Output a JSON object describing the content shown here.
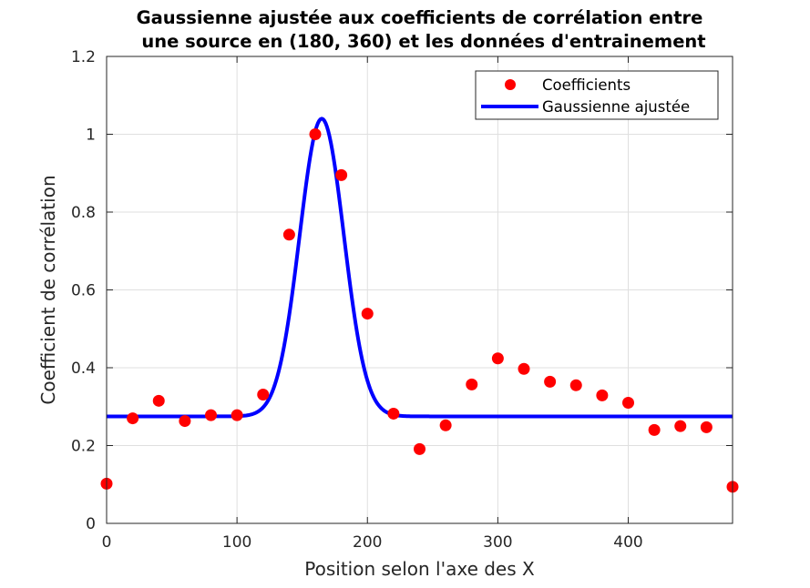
{
  "chart_data": {
    "type": "scatter",
    "title": [
      "Gaussienne ajustée aux coefficients de corrélation entre",
      "une source en (180, 360) et les données d'entrainement"
    ],
    "xlabel": "Position selon l'axe des X",
    "ylabel": "Coefficient de corrélation",
    "xlim": [
      0,
      480
    ],
    "ylim": [
      0,
      1.2
    ],
    "xticks": [
      0,
      100,
      200,
      300,
      400
    ],
    "yticks": [
      0,
      0.2,
      0.4,
      0.6,
      0.8,
      1,
      1.2
    ],
    "xtick_labels": [
      "0",
      "100",
      "200",
      "300",
      "400"
    ],
    "ytick_labels": [
      "0",
      "0.2",
      "0.4",
      "0.6",
      "0.8",
      "1",
      "1.2"
    ],
    "grid": true,
    "legend_position": "top-right",
    "series": [
      {
        "name": "Coefficients",
        "kind": "scatter",
        "color": "#ff0000",
        "x": [
          0,
          20,
          40,
          60,
          80,
          100,
          120,
          140,
          160,
          180,
          200,
          220,
          240,
          260,
          280,
          300,
          320,
          340,
          360,
          380,
          400,
          420,
          440,
          460,
          480
        ],
        "y": [
          0.102,
          0.27,
          0.315,
          0.263,
          0.278,
          0.278,
          0.331,
          0.742,
          1.0,
          0.895,
          0.539,
          0.282,
          0.191,
          0.252,
          0.357,
          0.424,
          0.397,
          0.364,
          0.355,
          0.329,
          0.31,
          0.24,
          0.25,
          0.247,
          0.094
        ]
      },
      {
        "name": "Gaussienne ajustée",
        "kind": "line",
        "color": "#0000ff",
        "model": {
          "baseline": 0.275,
          "amplitude": 0.765,
          "center": 165,
          "sigma": 17
        }
      }
    ]
  }
}
